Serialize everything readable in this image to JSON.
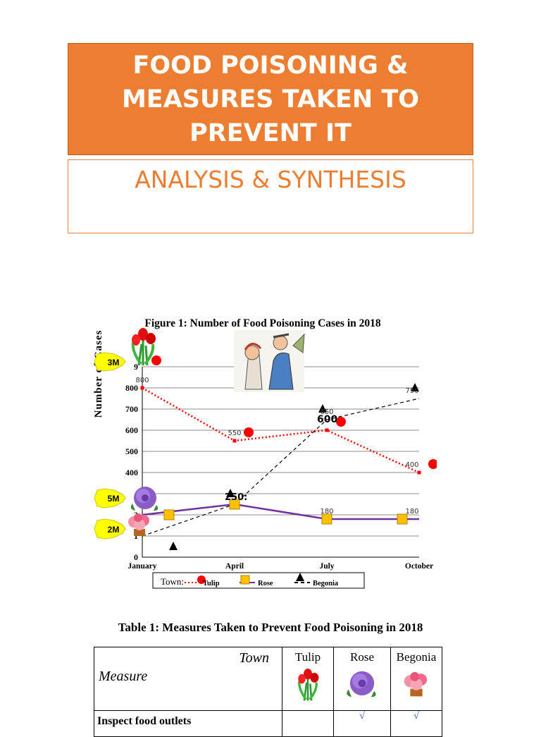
{
  "header": {
    "title": "FOOD POISONING & MEASURES TAKEN TO PREVENT IT",
    "subtitle": "ANALYSIS & SYNTHESIS"
  },
  "badges": {
    "tulip_marks": "3M",
    "rose_marks": "5M",
    "begonia_marks": "2M"
  },
  "chart_data": {
    "type": "line",
    "title": "Figure 1: Number of Food Poisoning Cases in 2018",
    "ylabel": "Number of Cases",
    "xlabel": "",
    "categories": [
      "January",
      "April",
      "July",
      "October"
    ],
    "yticks": [
      "0",
      "1",
      "2",
      "",
      "400",
      "500",
      "600",
      "700",
      "800",
      "9"
    ],
    "ylim": [
      0,
      900
    ],
    "legend_title": "Town:",
    "series": [
      {
        "name": "Tulip",
        "color": "#ff0000",
        "values": [
          800,
          550,
          600,
          400
        ],
        "labels": [
          "800",
          "550",
          "",
          "400"
        ]
      },
      {
        "name": "Rose",
        "color": "#7030a0",
        "values": [
          200,
          250,
          180,
          180
        ],
        "labels": [
          "",
          "",
          "180",
          "180"
        ]
      },
      {
        "name": "Begonia",
        "color": "#000000",
        "values": [
          100,
          250,
          650,
          750
        ],
        "labels": [
          "",
          "",
          "650",
          "750"
        ]
      }
    ],
    "annotations": [
      {
        "text": "250:"
      },
      {
        "text": "600"
      }
    ],
    "grid": true,
    "legend_position": "bottom"
  },
  "table": {
    "title": "Table 1: Measures Taken to Prevent Food Poisoning in 2018",
    "corner_town": "Town",
    "corner_measure": "Measure",
    "columns": [
      "Tulip",
      "Rose",
      "Begonia"
    ],
    "rows": [
      {
        "label": "Inspect food outlets",
        "marks": [
          "",
          "√",
          "√"
        ]
      }
    ]
  }
}
